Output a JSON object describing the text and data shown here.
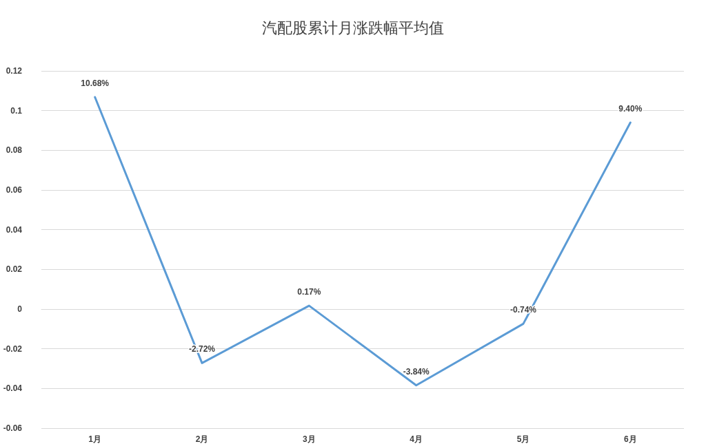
{
  "chart_data": {
    "type": "line",
    "title": "汽配股累计月涨跌幅平均值",
    "categories": [
      "1月",
      "2月",
      "3月",
      "4月",
      "5月",
      "6月"
    ],
    "values": [
      0.1068,
      -0.0272,
      0.0017,
      -0.0384,
      -0.0074,
      0.094
    ],
    "value_labels": [
      "10.68%",
      "-2.72%",
      "0.17%",
      "-3.84%",
      "-0.74%",
      "9.40%"
    ],
    "color": "#5b9bd5",
    "ylim": [
      -0.06,
      0.12
    ],
    "yticks": [
      -0.06,
      -0.04,
      -0.02,
      0,
      0.02,
      0.04,
      0.06,
      0.08,
      0.1,
      0.12
    ],
    "grid": "y",
    "marker": "none",
    "line_style": "solid"
  }
}
